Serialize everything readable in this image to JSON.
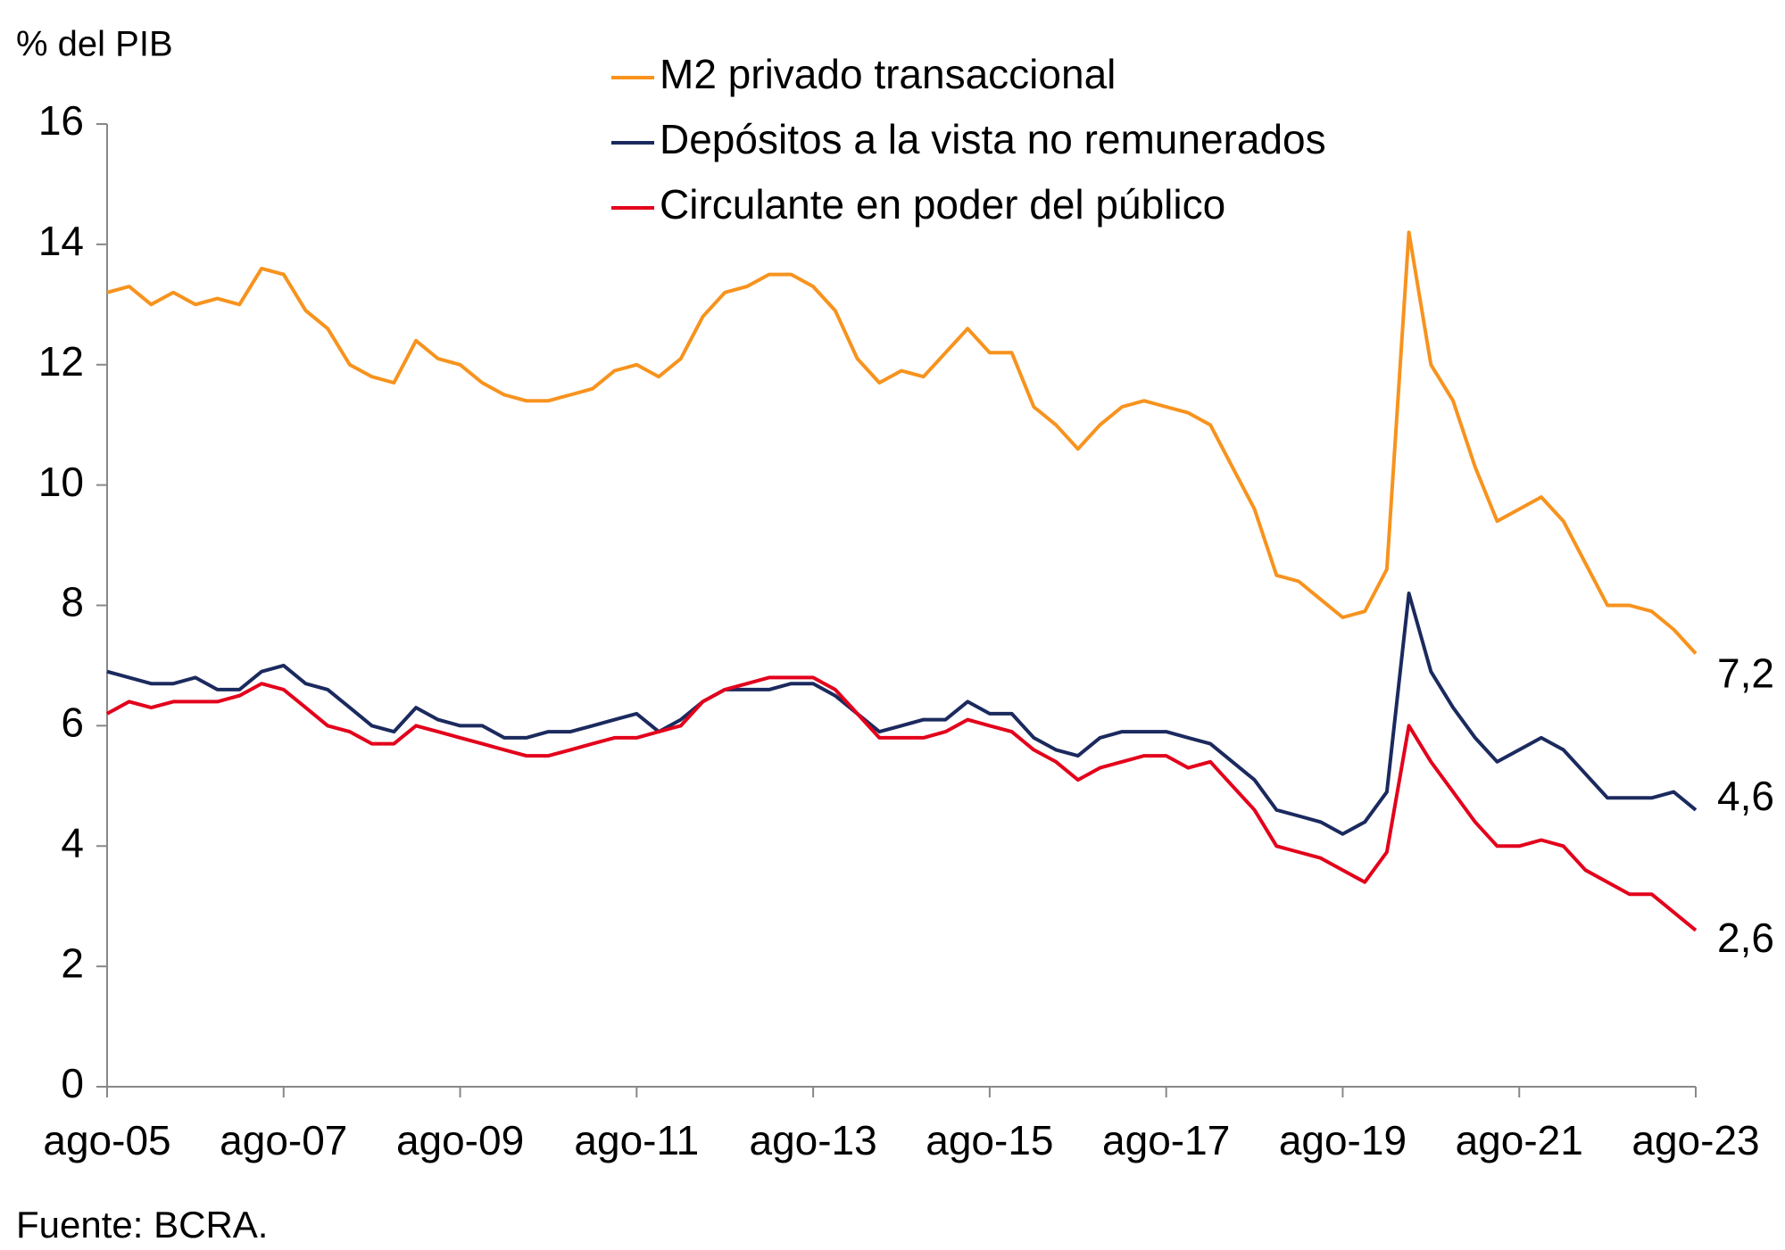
{
  "chart_data": {
    "type": "line",
    "y_label": "% del PIB",
    "source": "Fuente: BCRA.",
    "categories": [
      "ago-05",
      null,
      null,
      null,
      null,
      null,
      null,
      null,
      "ago-07",
      null,
      null,
      null,
      null,
      null,
      null,
      null,
      "ago-09",
      null,
      null,
      null,
      null,
      null,
      null,
      null,
      "ago-11",
      null,
      null,
      null,
      null,
      null,
      null,
      null,
      "ago-13",
      null,
      null,
      null,
      null,
      null,
      null,
      null,
      "ago-15",
      null,
      null,
      null,
      null,
      null,
      null,
      null,
      "ago-17",
      null,
      null,
      null,
      null,
      null,
      null,
      null,
      "ago-19",
      null,
      null,
      null,
      null,
      null,
      null,
      null,
      "ago-21",
      null,
      null,
      null,
      null,
      null,
      null,
      null,
      "ago-23"
    ],
    "ylim": [
      0,
      16
    ],
    "yticks": [
      0,
      2,
      4,
      6,
      8,
      10,
      12,
      14,
      16
    ],
    "grid": false,
    "series": [
      {
        "name": "M2 privado transaccional",
        "color": "#f7931e",
        "values": [
          13.2,
          13.3,
          13.0,
          13.2,
          13.0,
          13.1,
          13.0,
          13.6,
          13.5,
          12.9,
          12.6,
          12.0,
          11.8,
          11.7,
          12.4,
          12.1,
          12.0,
          11.7,
          11.5,
          11.4,
          11.4,
          11.5,
          11.6,
          11.9,
          12.0,
          11.8,
          12.1,
          12.8,
          13.2,
          13.3,
          13.5,
          13.5,
          13.3,
          12.9,
          12.1,
          11.7,
          11.9,
          11.8,
          12.2,
          12.6,
          12.2,
          12.2,
          11.3,
          11.0,
          10.6,
          11.0,
          11.3,
          11.4,
          11.3,
          11.2,
          11.0,
          10.3,
          9.6,
          8.5,
          8.4,
          8.1,
          7.8,
          7.9,
          8.6,
          14.2,
          12.0,
          11.4,
          10.3,
          9.4,
          9.6,
          9.8,
          9.4,
          8.7,
          8.0,
          8.0,
          7.9,
          7.6,
          7.2
        ],
        "value_labels": [
          null,
          null,
          null,
          null,
          null,
          null,
          null,
          null,
          null,
          null,
          null,
          null,
          null,
          null,
          null,
          null,
          null,
          null,
          null,
          null,
          null,
          null,
          null,
          null,
          null,
          null,
          null,
          null,
          null,
          null,
          null,
          null,
          null,
          null,
          null,
          null,
          null,
          null,
          null,
          null,
          null,
          null,
          null,
          null,
          null,
          null,
          null,
          null,
          null,
          null,
          null,
          null,
          null,
          null,
          null,
          null,
          null,
          null,
          null,
          null,
          null,
          null,
          null,
          null,
          null,
          null,
          null,
          null,
          null,
          null,
          null,
          null,
          "7,2"
        ]
      },
      {
        "name": "Depósitos a la vista no remunerados",
        "color": "#1b2a5e",
        "values": [
          6.9,
          6.8,
          6.7,
          6.7,
          6.8,
          6.6,
          6.6,
          6.9,
          7.0,
          6.7,
          6.6,
          6.3,
          6.0,
          5.9,
          6.3,
          6.1,
          6.0,
          6.0,
          5.8,
          5.8,
          5.9,
          5.9,
          6.0,
          6.1,
          6.2,
          5.9,
          6.1,
          6.4,
          6.6,
          6.6,
          6.6,
          6.7,
          6.7,
          6.5,
          6.2,
          5.9,
          6.0,
          6.1,
          6.1,
          6.4,
          6.2,
          6.2,
          5.8,
          5.6,
          5.5,
          5.8,
          5.9,
          5.9,
          5.9,
          5.8,
          5.7,
          5.4,
          5.1,
          4.6,
          4.5,
          4.4,
          4.2,
          4.4,
          4.9,
          8.2,
          6.9,
          6.3,
          5.8,
          5.4,
          5.6,
          5.8,
          5.6,
          5.2,
          4.8,
          4.8,
          4.8,
          4.9,
          4.6
        ],
        "value_labels": [
          null,
          null,
          null,
          null,
          null,
          null,
          null,
          null,
          null,
          null,
          null,
          null,
          null,
          null,
          null,
          null,
          null,
          null,
          null,
          null,
          null,
          null,
          null,
          null,
          null,
          null,
          null,
          null,
          null,
          null,
          null,
          null,
          null,
          null,
          null,
          null,
          null,
          null,
          null,
          null,
          null,
          null,
          null,
          null,
          null,
          null,
          null,
          null,
          null,
          null,
          null,
          null,
          null,
          null,
          null,
          null,
          null,
          null,
          null,
          null,
          null,
          null,
          null,
          null,
          null,
          null,
          null,
          null,
          null,
          null,
          null,
          null,
          "4,6"
        ]
      },
      {
        "name": "Circulante en poder del público",
        "color": "#e3001b",
        "values": [
          6.2,
          6.4,
          6.3,
          6.4,
          6.4,
          6.4,
          6.5,
          6.7,
          6.6,
          6.3,
          6.0,
          5.9,
          5.7,
          5.7,
          6.0,
          5.9,
          5.8,
          5.7,
          5.6,
          5.5,
          5.5,
          5.6,
          5.7,
          5.8,
          5.8,
          5.9,
          6.0,
          6.4,
          6.6,
          6.7,
          6.8,
          6.8,
          6.8,
          6.6,
          6.2,
          5.8,
          5.8,
          5.8,
          5.9,
          6.1,
          6.0,
          5.9,
          5.6,
          5.4,
          5.1,
          5.3,
          5.4,
          5.5,
          5.5,
          5.3,
          5.4,
          5.0,
          4.6,
          4.0,
          3.9,
          3.8,
          3.6,
          3.4,
          3.9,
          6.0,
          5.4,
          4.9,
          4.4,
          4.0,
          4.0,
          4.1,
          4.0,
          3.6,
          3.4,
          3.2,
          3.2,
          2.9,
          2.6
        ],
        "value_labels": [
          null,
          null,
          null,
          null,
          null,
          null,
          null,
          null,
          null,
          null,
          null,
          null,
          null,
          null,
          null,
          null,
          null,
          null,
          null,
          null,
          null,
          null,
          null,
          null,
          null,
          null,
          null,
          null,
          null,
          null,
          null,
          null,
          null,
          null,
          null,
          null,
          null,
          null,
          null,
          null,
          null,
          null,
          null,
          null,
          null,
          null,
          null,
          null,
          null,
          null,
          null,
          null,
          null,
          null,
          null,
          null,
          null,
          null,
          null,
          null,
          null,
          null,
          null,
          null,
          null,
          null,
          null,
          null,
          null,
          null,
          null,
          null,
          "2,6"
        ]
      }
    ]
  }
}
